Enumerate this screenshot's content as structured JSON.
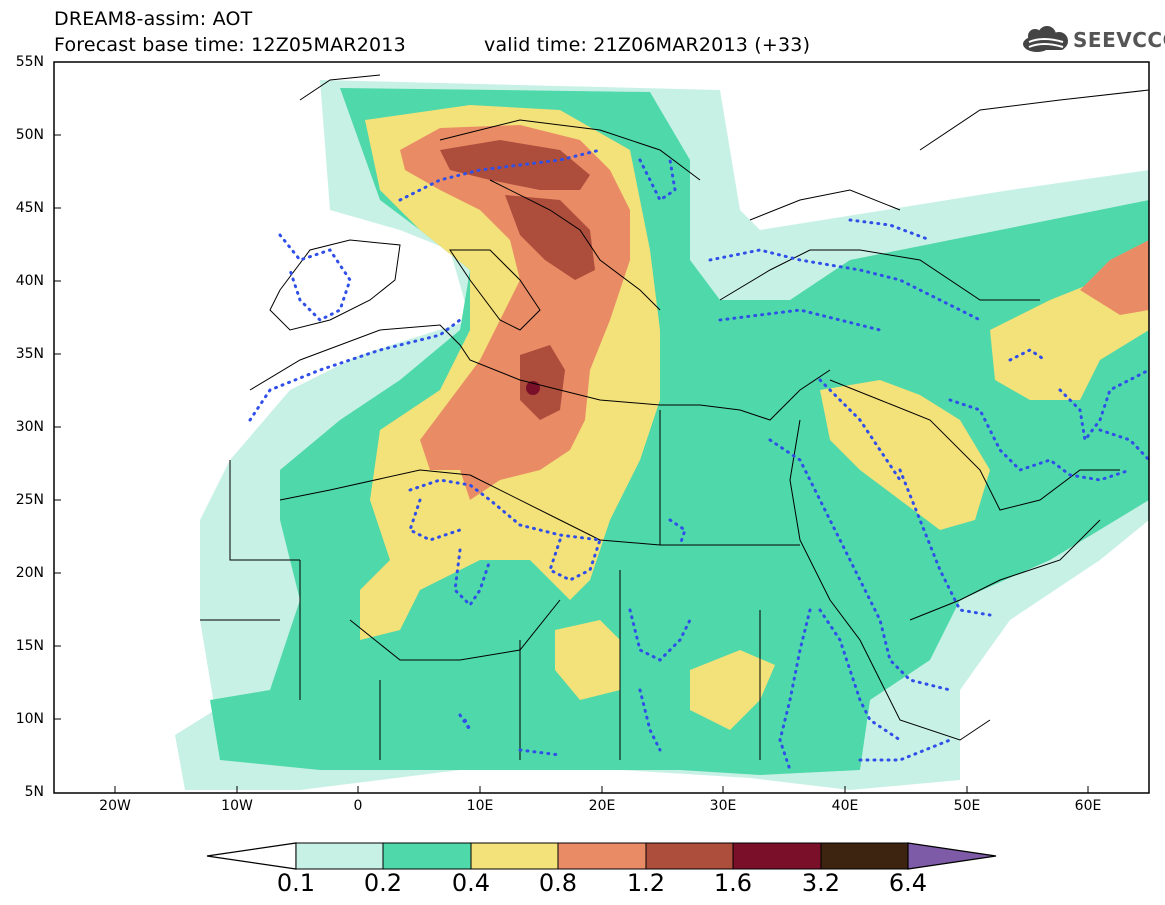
{
  "header": {
    "line1": "DREAM8-assim: AOT",
    "line2": "Forecast base time: 12Z05MAR2013",
    "line3": "valid time: 21Z06MAR2013 (+33)",
    "logo_text": "SEEVCCC"
  },
  "map": {
    "lon_range": [
      -25,
      65
    ],
    "lat_range": [
      5,
      55
    ],
    "y_ticks": [
      "55N",
      "50N",
      "45N",
      "40N",
      "35N",
      "30N",
      "25N",
      "20N",
      "15N",
      "10N",
      "5N"
    ],
    "x_ticks": [
      "20W",
      "10W",
      "0",
      "10E",
      "20E",
      "30E",
      "40E",
      "50E",
      "60E"
    ]
  },
  "colorbar": {
    "labels": [
      "0.1",
      "0.2",
      "0.4",
      "0.8",
      "1.2",
      "1.6",
      "3.2",
      "6.4"
    ],
    "colors": [
      "#c8f1e6",
      "#4fd8a9",
      "#f3e17a",
      "#e98c66",
      "#ad4d3b",
      "#7a0f2a",
      "#3d2410",
      "#7d5ba6"
    ]
  }
}
